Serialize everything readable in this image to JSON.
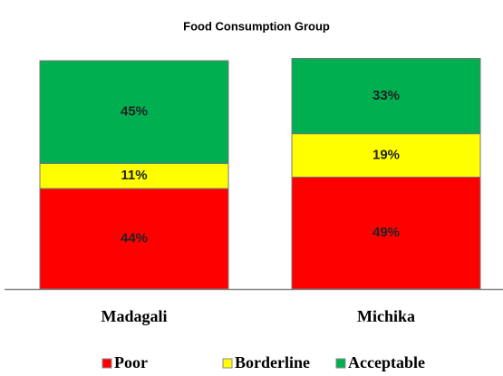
{
  "chart_data": {
    "type": "stacked-bar",
    "title": "Food Consumption Group",
    "categories": [
      "Madagali",
      "Michika"
    ],
    "series": [
      {
        "name": "Poor",
        "color": "#ff0000",
        "values": [
          44,
          49
        ],
        "value_labels": [
          "44%",
          "49%"
        ]
      },
      {
        "name": "Borderline",
        "color": "#ffff00",
        "values": [
          11,
          19
        ],
        "value_labels": [
          "11%",
          "19%"
        ]
      },
      {
        "name": "Acceptable",
        "color": "#00b050",
        "values": [
          45,
          33
        ],
        "value_labels": [
          "45%",
          "33%"
        ]
      }
    ],
    "ylim": [
      0,
      100
    ],
    "legend": "bottom"
  }
}
